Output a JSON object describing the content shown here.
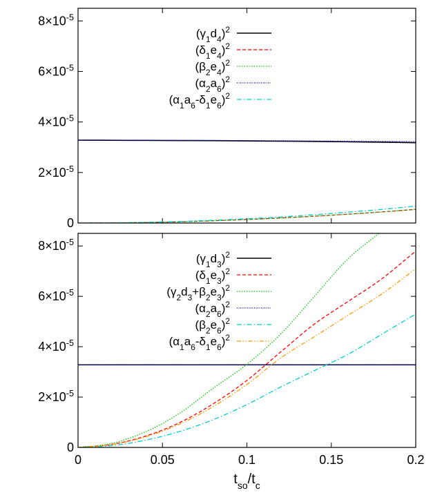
{
  "chart_data": [
    {
      "type": "line",
      "title": "",
      "xlabel": "",
      "ylabel": "",
      "xlim": [
        0,
        0.2
      ],
      "ylim": [
        0,
        8.5e-05
      ],
      "grid": false,
      "legend_position": "top-right",
      "yticks": [
        {
          "value": 0,
          "mantissa": "0",
          "exp": ""
        },
        {
          "value": 2e-05,
          "mantissa": "2×10",
          "exp": "-5"
        },
        {
          "value": 4e-05,
          "mantissa": "4×10",
          "exp": "-5"
        },
        {
          "value": 6e-05,
          "mantissa": "6×10",
          "exp": "-5"
        },
        {
          "value": 8e-05,
          "mantissa": "8×10",
          "exp": "-5"
        }
      ],
      "x": [
        0,
        0.02,
        0.04,
        0.06,
        0.08,
        0.1,
        0.12,
        0.14,
        0.16,
        0.18,
        0.2
      ],
      "series": [
        {
          "color": "#000000",
          "dash": "solid",
          "legend": [
            {
              "t": "(γ"
            },
            {
              "sub": "1"
            },
            {
              "t": "d"
            },
            {
              "sub": "4"
            },
            {
              "t": ")"
            },
            {
              "sup": "2"
            }
          ],
          "values": [
            3.28e-05,
            3.275e-05,
            3.27e-05,
            3.265e-05,
            3.26e-05,
            3.25e-05,
            3.24e-05,
            3.23e-05,
            3.215e-05,
            3.2e-05,
            3.18e-05
          ]
        },
        {
          "color": "#ff0000",
          "dash": "dashed",
          "legend": [
            {
              "t": "(δ"
            },
            {
              "sub": "1"
            },
            {
              "t": "e"
            },
            {
              "sub": "4"
            },
            {
              "t": ")"
            },
            {
              "sup": "2"
            }
          ],
          "values": [
            0,
            5e-08,
            2e-07,
            5e-07,
            9e-07,
            1.4e-06,
            2e-06,
            2.7e-06,
            3.5e-06,
            4.4e-06,
            5.4e-06
          ]
        },
        {
          "color": "#00cc00",
          "dash": "dotted",
          "legend": [
            {
              "t": "(β"
            },
            {
              "sub": "2"
            },
            {
              "t": "e"
            },
            {
              "sub": "4"
            },
            {
              "t": ")"
            },
            {
              "sup": "2"
            }
          ],
          "values": [
            0,
            5e-08,
            2e-07,
            5e-07,
            9e-07,
            1.4e-06,
            2e-06,
            2.7e-06,
            3.5e-06,
            4.4e-06,
            5.4e-06
          ]
        },
        {
          "color": "#0000cc",
          "dash": "fine-dotted",
          "legend": [
            {
              "t": "(α"
            },
            {
              "sub": "2"
            },
            {
              "t": "a"
            },
            {
              "sub": "6"
            },
            {
              "t": ")"
            },
            {
              "sup": "2"
            }
          ],
          "values": [
            3.28e-05,
            3.277e-05,
            3.274e-05,
            3.27e-05,
            3.266e-05,
            3.26e-05,
            3.254e-05,
            3.247e-05,
            3.24e-05,
            3.232e-05,
            3.22e-05
          ]
        },
        {
          "color": "#00cccc",
          "dash": "dash-dot",
          "legend": [
            {
              "t": "(α"
            },
            {
              "sub": "1"
            },
            {
              "t": "a"
            },
            {
              "sub": "6"
            },
            {
              "t": "-δ"
            },
            {
              "sub": "1"
            },
            {
              "t": "e"
            },
            {
              "sub": "6"
            },
            {
              "t": ")"
            },
            {
              "sup": "2"
            }
          ],
          "values": [
            0,
            6e-08,
            2.5e-07,
            6e-07,
            1.1e-06,
            1.7e-06,
            2.4e-06,
            3.3e-06,
            4.3e-06,
            5.4e-06,
            6.7e-06
          ]
        }
      ]
    },
    {
      "type": "line",
      "title": "",
      "xlabel": [
        {
          "t": "t"
        },
        {
          "sub": "so"
        },
        {
          "t": "/t"
        },
        {
          "sub": "c"
        }
      ],
      "ylabel": "",
      "xlim": [
        0,
        0.2
      ],
      "ylim": [
        0,
        8.5e-05
      ],
      "grid": false,
      "legend_position": "top-right",
      "xticks": [
        {
          "value": 0,
          "label": "0"
        },
        {
          "value": 0.05,
          "label": "0.05"
        },
        {
          "value": 0.1,
          "label": "0.1"
        },
        {
          "value": 0.15,
          "label": "0.15"
        },
        {
          "value": 0.2,
          "label": "0.2"
        }
      ],
      "yticks": [
        {
          "value": 0,
          "mantissa": "0",
          "exp": ""
        },
        {
          "value": 2e-05,
          "mantissa": "2×10",
          "exp": "-5"
        },
        {
          "value": 4e-05,
          "mantissa": "4×10",
          "exp": "-5"
        },
        {
          "value": 6e-05,
          "mantissa": "6×10",
          "exp": "-5"
        },
        {
          "value": 8e-05,
          "mantissa": "8×10",
          "exp": "-5"
        }
      ],
      "x": [
        0,
        0.02,
        0.04,
        0.06,
        0.08,
        0.1,
        0.12,
        0.14,
        0.16,
        0.18,
        0.2
      ],
      "series": [
        {
          "color": "#000000",
          "dash": "solid",
          "legend": [
            {
              "t": "(γ"
            },
            {
              "sub": "1"
            },
            {
              "t": "d"
            },
            {
              "sub": "3"
            },
            {
              "t": ")"
            },
            {
              "sup": "2"
            }
          ],
          "values": [
            3.28e-05,
            3.28e-05,
            3.28e-05,
            3.28e-05,
            3.28e-05,
            3.28e-05,
            3.28e-05,
            3.28e-05,
            3.28e-05,
            3.28e-05,
            3.28e-05
          ]
        },
        {
          "color": "#ff0000",
          "dash": "dashed",
          "legend": [
            {
              "t": "(δ"
            },
            {
              "sub": "1"
            },
            {
              "t": "e"
            },
            {
              "sub": "3"
            },
            {
              "t": ")"
            },
            {
              "sup": "2"
            }
          ],
          "values": [
            0,
            1.2e-06,
            4.5e-06,
            9.8e-06,
            1.73e-05,
            2.66e-05,
            3.79e-05,
            4.9e-05,
            5.8e-05,
            6.7e-05,
            7.8e-05
          ]
        },
        {
          "color": "#00cc00",
          "dash": "dotted",
          "legend": [
            {
              "t": "(γ"
            },
            {
              "sub": "2"
            },
            {
              "t": "d"
            },
            {
              "sub": "3"
            },
            {
              "t": "+β"
            },
            {
              "sub": "2"
            },
            {
              "t": "e"
            },
            {
              "sub": "3"
            },
            {
              "t": ")"
            },
            {
              "sup": "2"
            }
          ],
          "values": [
            0,
            1.6e-06,
            6.2e-06,
            1.35e-05,
            2.35e-05,
            3.3e-05,
            4.5e-05,
            6e-05,
            7.5e-05,
            8.6e-05,
            9.8e-05
          ]
        },
        {
          "color": "#0000cc",
          "dash": "fine-dotted",
          "legend": [
            {
              "t": "(α"
            },
            {
              "sub": "2"
            },
            {
              "t": "a"
            },
            {
              "sub": "6"
            },
            {
              "t": ")"
            },
            {
              "sup": "2"
            }
          ],
          "values": [
            3.28e-05,
            3.28e-05,
            3.28e-05,
            3.28e-05,
            3.28e-05,
            3.28e-05,
            3.28e-05,
            3.28e-05,
            3.28e-05,
            3.28e-05,
            3.28e-05
          ]
        },
        {
          "color": "#00cccc",
          "dash": "dash-dot",
          "legend": [
            {
              "t": "(β"
            },
            {
              "sub": "2"
            },
            {
              "t": "e"
            },
            {
              "sub": "6"
            },
            {
              "t": ")"
            },
            {
              "sup": "2"
            }
          ],
          "values": [
            0,
            7e-07,
            2.9e-06,
            6.3e-06,
            1.1e-05,
            1.7e-05,
            2.4e-05,
            3.05e-05,
            3.7e-05,
            4.5e-05,
            5.3e-05
          ]
        },
        {
          "color": "#ff9900",
          "dash": "dash-dot-dot",
          "legend": [
            {
              "t": "(α"
            },
            {
              "sub": "1"
            },
            {
              "t": "a"
            },
            {
              "sub": "6"
            },
            {
              "t": "-δ"
            },
            {
              "sub": "1"
            },
            {
              "t": "e"
            },
            {
              "sub": "6"
            },
            {
              "t": ")"
            },
            {
              "sup": "2"
            }
          ],
          "values": [
            0,
            1.1e-06,
            4.2e-06,
            9.2e-06,
            1.62e-05,
            2.5e-05,
            3.55e-05,
            4.4e-05,
            5.25e-05,
            6.1e-05,
            7.1e-05
          ]
        }
      ]
    }
  ]
}
